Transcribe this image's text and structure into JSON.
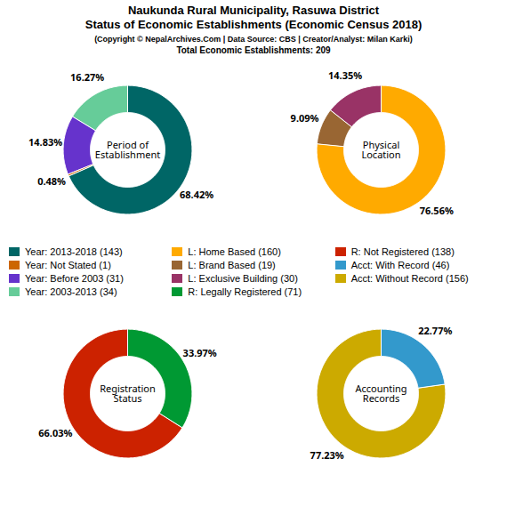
{
  "title": "Naukunda Rural Municipality, Rasuwa District\nStatus of Economic Establishments (Economic Census 2018)",
  "subtitle": "(Copyright © NepalArchives.Com | Data Source: CBS | Creator/Analyst: Milan Karki)",
  "annotations": [
    "Total Economic Establishments: 209"
  ],
  "legend": "center",
  "chart_data": [
    {
      "type": "pie",
      "title": "Period of\nEstablishment",
      "categories": [
        "Year: 2013-2018 (143)",
        "Year: Not Stated (1)",
        "Year: Before 2003 (31)",
        "Year: 2003-2013 (34)"
      ],
      "values": [
        68.42,
        0.48,
        14.83,
        16.27
      ],
      "value_labels": [
        "68.42%",
        "0.48%",
        "14.83%",
        "16.27%"
      ],
      "colors": [
        "#006666",
        "#cc6600",
        "#6633cc",
        "#66cc99"
      ],
      "data_labels": true
    },
    {
      "type": "pie",
      "title": "Physical\nLocation",
      "categories": [
        "L: Home Based (160)",
        "L: Brand Based (19)",
        "L: Exclusive Building (30)"
      ],
      "values": [
        76.56,
        9.09,
        14.35
      ],
      "value_labels": [
        "76.56%",
        "9.09%",
        "14.35%"
      ],
      "colors": [
        "#ffaa00",
        "#996633",
        "#993366"
      ],
      "data_labels": true
    },
    {
      "type": "pie",
      "title": "Registration\nStatus",
      "categories": [
        "R: Legally Registered (71)",
        "R: Not Registered (138)"
      ],
      "values": [
        33.97,
        66.03
      ],
      "value_labels": [
        "33.97%",
        "66.03%"
      ],
      "colors": [
        "#009933",
        "#cc2200"
      ],
      "data_labels": true
    },
    {
      "type": "pie",
      "title": "Accounting\nRecords",
      "categories": [
        "Acct: With Record (46)",
        "Acct: Without Record (156)"
      ],
      "values": [
        22.77,
        77.23
      ],
      "value_labels": [
        "22.77%",
        "77.23%"
      ],
      "colors": [
        "#3399cc",
        "#ccaa00"
      ],
      "data_labels": true
    }
  ]
}
